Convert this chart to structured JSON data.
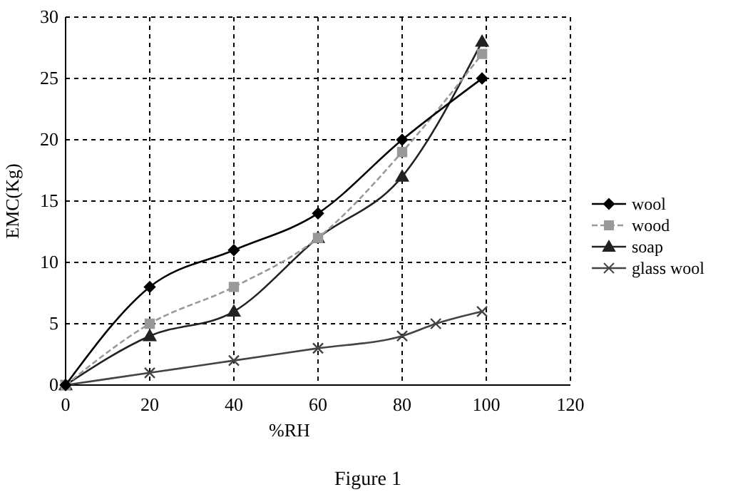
{
  "chart_data": {
    "type": "line",
    "title": "Figure 1",
    "xlabel": "%RH",
    "ylabel": "EMC(Kg)",
    "x": [
      0,
      20,
      40,
      60,
      80,
      99
    ],
    "series": [
      {
        "name": "wool",
        "color": "#000000",
        "values": [
          0,
          8,
          11,
          14,
          20,
          25
        ],
        "marker": "diamond",
        "line_style": "solid"
      },
      {
        "name": "wood",
        "color": "#999999",
        "values": [
          0,
          5,
          8,
          12,
          19,
          27
        ],
        "marker": "square",
        "line_style": "dashed"
      },
      {
        "name": "soap",
        "color": "#222222",
        "values": [
          0,
          4,
          6,
          12,
          17,
          28
        ],
        "marker": "triangle",
        "line_style": "solid"
      },
      {
        "name": "glass wool",
        "color": "#444444",
        "x": [
          0,
          20,
          40,
          60,
          80,
          88,
          99
        ],
        "values": [
          0,
          1,
          2,
          3,
          4,
          5,
          6
        ],
        "marker": "cross",
        "line_style": "solid"
      }
    ],
    "xlim": [
      0,
      120
    ],
    "xticks": [
      0,
      20,
      40,
      60,
      80,
      100,
      120
    ],
    "ylim": [
      0,
      30
    ],
    "yticks": [
      0,
      5,
      10,
      15,
      20,
      25,
      30
    ],
    "grid": true,
    "legend": "right"
  }
}
